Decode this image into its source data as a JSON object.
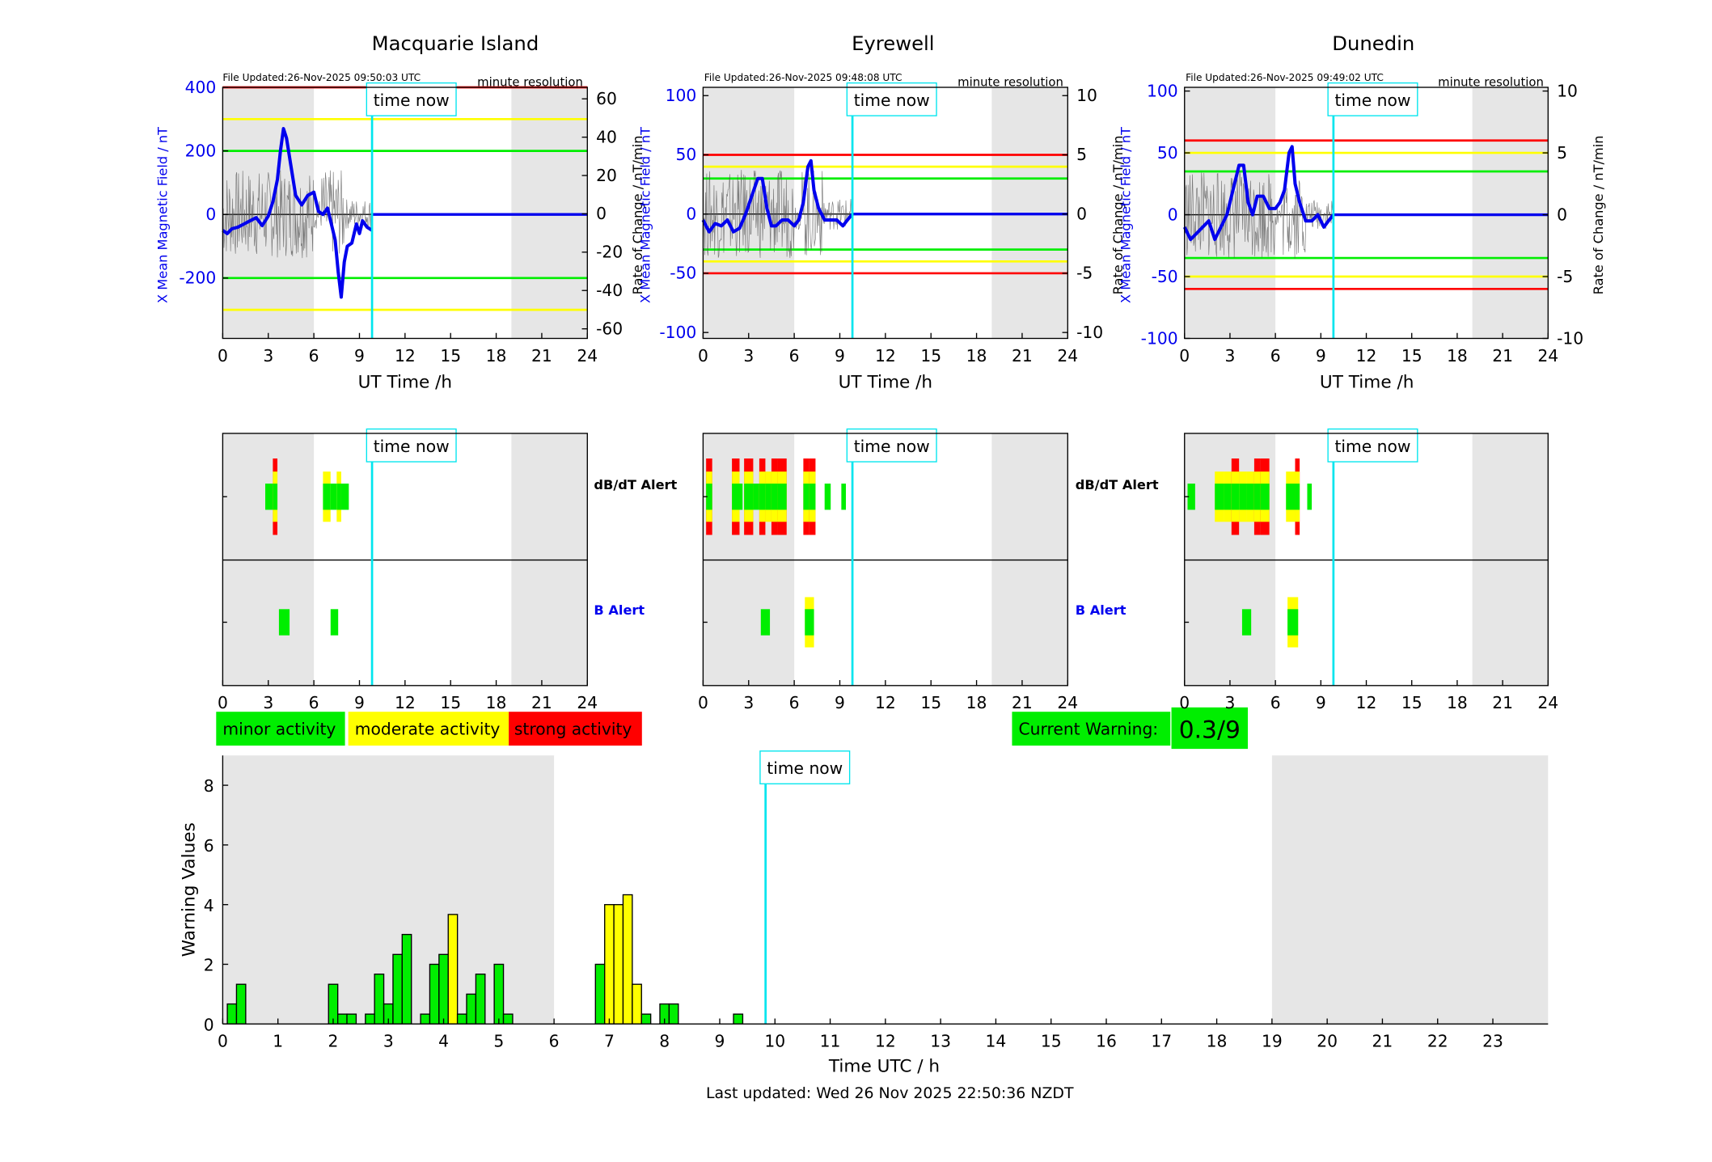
{
  "colors": {
    "blue": "#0000ee",
    "cyan": "#00e5ee",
    "red": "#ff0000",
    "yellow": "#ffff00",
    "green": "#00ee00",
    "grey_shade": "#e6e6e6",
    "black": "#000000"
  },
  "legend": {
    "minor": "minor activity",
    "moderate": "moderate activity",
    "strong": "strong activity"
  },
  "current_warning": {
    "label": "Current Warning:",
    "value": "0.3/9"
  },
  "last_updated": "Last updated: Wed 26 Nov 2025 22:50:36 NZDT",
  "time_now_label": "time now",
  "alert_labels": {
    "dbdt": "dB/dT Alert",
    "b": "B Alert"
  },
  "chart_data": [
    {
      "type": "line",
      "station": "Macquarie Island",
      "title": "Macquarie Island",
      "file_updated": "File Updated:26-Nov-2025 09:50:03 UTC",
      "resolution": "minute resolution",
      "xlabel": "UT Time /h",
      "ylabel_left": "X Mean Magnetic Field / nT",
      "ylabel_right": "Rate of Change / nT/min",
      "xlim": [
        0,
        24
      ],
      "ylim_left": [
        -390,
        400
      ],
      "ylim_right": [
        -65,
        66
      ],
      "xticks": [
        0,
        3,
        6,
        9,
        12,
        15,
        18,
        21,
        24
      ],
      "yticks_left": [
        -200,
        0,
        200,
        400
      ],
      "yticks_right": [
        -60,
        -40,
        -20,
        0,
        20,
        40,
        60
      ],
      "threshold_lines": [
        {
          "color": "red",
          "value": 400
        },
        {
          "color": "yellow",
          "value": 300
        },
        {
          "color": "green",
          "value": 200
        },
        {
          "color": "green",
          "value": -200
        },
        {
          "color": "yellow",
          "value": -300
        }
      ],
      "night_shading": [
        [
          0,
          6
        ],
        [
          19,
          24
        ]
      ],
      "time_now": 9.83,
      "series": [
        {
          "name": "X Mean Magnetic Field",
          "color": "blue",
          "x": [
            0,
            0.3,
            0.6,
            1,
            1.4,
            1.8,
            2.2,
            2.6,
            3.0,
            3.3,
            3.6,
            3.8,
            4.0,
            4.2,
            4.5,
            4.8,
            5.2,
            5.6,
            6.0,
            6.3,
            6.6,
            6.9,
            7.2,
            7.4,
            7.6,
            7.8,
            8.0,
            8.2,
            8.5,
            8.8,
            9.0,
            9.2,
            9.5,
            9.83
          ],
          "y": [
            -50,
            -60,
            -45,
            -40,
            -30,
            -20,
            -10,
            -35,
            -5,
            40,
            110,
            200,
            270,
            240,
            150,
            60,
            30,
            60,
            70,
            10,
            0,
            20,
            -40,
            -80,
            -180,
            -260,
            -150,
            -100,
            -90,
            -30,
            -60,
            -20,
            -40,
            -50
          ]
        },
        {
          "name": "Rate of Change (noisy)",
          "color": "black",
          "x": [
            0,
            9.83
          ],
          "y": [
            0,
            0
          ]
        },
        {
          "name": "flat tail",
          "color": "blue",
          "x": [
            9.83,
            24
          ],
          "y": [
            0,
            0
          ]
        }
      ]
    },
    {
      "type": "line",
      "station": "Eyrewell",
      "title": "Eyrewell",
      "file_updated": "File Updated:26-Nov-2025 09:48:08 UTC",
      "resolution": "minute resolution",
      "xlabel": "UT Time /h",
      "ylabel_left": "X Mean Magnetic Field / nT",
      "ylabel_right": "Rate of Change / nT/min",
      "xlim": [
        0,
        24
      ],
      "ylim_left": [
        -105,
        107
      ],
      "ylim_right": [
        -10.5,
        10.7
      ],
      "xticks": [
        0,
        3,
        6,
        9,
        12,
        15,
        18,
        21,
        24
      ],
      "yticks_left": [
        -100,
        -50,
        0,
        50,
        100
      ],
      "yticks_right": [
        -10,
        -5,
        0,
        5,
        10
      ],
      "threshold_lines": [
        {
          "color": "red",
          "value": 50
        },
        {
          "color": "yellow",
          "value": 40
        },
        {
          "color": "green",
          "value": 30
        },
        {
          "color": "green",
          "value": -30
        },
        {
          "color": "yellow",
          "value": -40
        },
        {
          "color": "red",
          "value": -50
        }
      ],
      "night_shading": [
        [
          0,
          6
        ],
        [
          19,
          24
        ]
      ],
      "time_now": 9.83,
      "series": [
        {
          "name": "X Mean Magnetic Field",
          "color": "blue",
          "x": [
            0,
            0.4,
            0.8,
            1.2,
            1.6,
            2.0,
            2.4,
            2.8,
            3.2,
            3.6,
            3.9,
            4.2,
            4.5,
            4.8,
            5.2,
            5.6,
            6.0,
            6.3,
            6.6,
            6.9,
            7.1,
            7.3,
            7.6,
            8.0,
            8.4,
            8.8,
            9.2,
            9.5,
            9.83
          ],
          "y": [
            -5,
            -15,
            -8,
            -10,
            -5,
            -15,
            -12,
            0,
            15,
            30,
            30,
            5,
            -10,
            -10,
            -5,
            -5,
            -10,
            -5,
            10,
            40,
            45,
            20,
            5,
            -5,
            -5,
            -5,
            -10,
            -5,
            0
          ]
        },
        {
          "name": "flat tail",
          "color": "blue",
          "x": [
            9.83,
            24
          ],
          "y": [
            0,
            0
          ]
        }
      ]
    },
    {
      "type": "line",
      "station": "Dunedin",
      "title": "Dunedin",
      "file_updated": "File Updated:26-Nov-2025 09:49:02 UTC",
      "resolution": "minute resolution",
      "xlabel": "UT Time /h",
      "ylabel_left": "X Mean Magnetic Field / nT",
      "ylabel_right": "Rate of Change / nT/min",
      "xlim": [
        0,
        24
      ],
      "ylim_left": [
        -100,
        103
      ],
      "ylim_right": [
        -10,
        10.3
      ],
      "xticks": [
        0,
        3,
        6,
        9,
        12,
        15,
        18,
        21,
        24
      ],
      "yticks_left": [
        -100,
        -50,
        0,
        50,
        100
      ],
      "yticks_right": [
        -10,
        -5,
        0,
        5,
        10
      ],
      "threshold_lines": [
        {
          "color": "red",
          "value": 60
        },
        {
          "color": "yellow",
          "value": 50
        },
        {
          "color": "green",
          "value": 35
        },
        {
          "color": "green",
          "value": -35
        },
        {
          "color": "yellow",
          "value": -50
        },
        {
          "color": "red",
          "value": -60
        }
      ],
      "night_shading": [
        [
          0,
          6
        ],
        [
          19,
          24
        ]
      ],
      "time_now": 9.83,
      "series": [
        {
          "name": "X Mean Magnetic Field",
          "color": "blue",
          "x": [
            0,
            0.4,
            0.8,
            1.2,
            1.6,
            2.0,
            2.4,
            2.8,
            3.2,
            3.6,
            3.9,
            4.2,
            4.5,
            4.8,
            5.2,
            5.6,
            6.0,
            6.3,
            6.6,
            6.9,
            7.1,
            7.3,
            7.6,
            8.0,
            8.4,
            8.8,
            9.2,
            9.5,
            9.83
          ],
          "y": [
            -10,
            -20,
            -15,
            -10,
            -5,
            -20,
            -10,
            0,
            20,
            40,
            40,
            10,
            0,
            15,
            15,
            5,
            5,
            10,
            20,
            50,
            55,
            25,
            10,
            -5,
            -5,
            0,
            -10,
            -5,
            0
          ]
        },
        {
          "name": "flat tail",
          "color": "blue",
          "x": [
            9.83,
            24
          ],
          "y": [
            0,
            0
          ]
        }
      ]
    },
    {
      "type": "bar",
      "panel": "alerts",
      "station": "Macquarie Island",
      "xlim": [
        0,
        24
      ],
      "xticks": [
        0,
        3,
        6,
        9,
        12,
        15,
        18,
        21,
        24
      ],
      "dbdt_alerts": [
        {
          "x0": 2.8,
          "x1": 3.3,
          "level": "minor"
        },
        {
          "x0": 3.3,
          "x1": 3.6,
          "level": "strong"
        },
        {
          "x0": 6.6,
          "x1": 7.1,
          "level": "moderate"
        },
        {
          "x0": 7.1,
          "x1": 7.5,
          "level": "minor"
        },
        {
          "x0": 7.5,
          "x1": 7.8,
          "level": "moderate"
        },
        {
          "x0": 7.8,
          "x1": 8.3,
          "level": "minor"
        }
      ],
      "b_alerts": [
        {
          "x0": 3.7,
          "x1": 4.4,
          "level": "minor"
        },
        {
          "x0": 7.1,
          "x1": 7.6,
          "level": "minor"
        }
      ],
      "night_shading": [
        [
          0,
          6
        ],
        [
          19,
          24
        ]
      ],
      "time_now": 9.83
    },
    {
      "type": "bar",
      "panel": "alerts",
      "station": "Eyrewell",
      "xlim": [
        0,
        24
      ],
      "xticks": [
        0,
        3,
        6,
        9,
        12,
        15,
        18,
        21,
        24
      ],
      "dbdt_alerts": [
        {
          "x0": 0.2,
          "x1": 0.6,
          "level": "strong"
        },
        {
          "x0": 1.9,
          "x1": 2.4,
          "level": "strong"
        },
        {
          "x0": 2.4,
          "x1": 2.6,
          "level": "minor"
        },
        {
          "x0": 2.7,
          "x1": 3.3,
          "level": "strong"
        },
        {
          "x0": 3.3,
          "x1": 3.7,
          "level": "minor"
        },
        {
          "x0": 3.7,
          "x1": 4.1,
          "level": "strong"
        },
        {
          "x0": 4.1,
          "x1": 4.5,
          "level": "moderate"
        },
        {
          "x0": 4.5,
          "x1": 4.9,
          "level": "strong"
        },
        {
          "x0": 4.9,
          "x1": 5.5,
          "level": "strong"
        },
        {
          "x0": 6.6,
          "x1": 7.0,
          "level": "strong"
        },
        {
          "x0": 7.0,
          "x1": 7.4,
          "level": "strong"
        },
        {
          "x0": 8.0,
          "x1": 8.4,
          "level": "minor"
        },
        {
          "x0": 9.1,
          "x1": 9.4,
          "level": "minor"
        }
      ],
      "b_alerts": [
        {
          "x0": 3.8,
          "x1": 4.4,
          "level": "minor"
        },
        {
          "x0": 6.7,
          "x1": 7.3,
          "level": "moderate"
        }
      ],
      "night_shading": [
        [
          0,
          6
        ],
        [
          19,
          24
        ]
      ],
      "time_now": 9.83
    },
    {
      "type": "bar",
      "panel": "alerts",
      "station": "Dunedin",
      "xlim": [
        0,
        24
      ],
      "xticks": [
        0,
        3,
        6,
        9,
        12,
        15,
        18,
        21,
        24
      ],
      "dbdt_alerts": [
        {
          "x0": 0.2,
          "x1": 0.7,
          "level": "minor"
        },
        {
          "x0": 2.0,
          "x1": 2.6,
          "level": "moderate"
        },
        {
          "x0": 2.6,
          "x1": 3.1,
          "level": "moderate"
        },
        {
          "x0": 3.1,
          "x1": 3.6,
          "level": "strong"
        },
        {
          "x0": 3.6,
          "x1": 4.1,
          "level": "moderate"
        },
        {
          "x0": 4.1,
          "x1": 4.6,
          "level": "moderate"
        },
        {
          "x0": 4.6,
          "x1": 5.0,
          "level": "strong"
        },
        {
          "x0": 5.0,
          "x1": 5.6,
          "level": "strong"
        },
        {
          "x0": 6.7,
          "x1": 7.3,
          "level": "moderate"
        },
        {
          "x0": 7.3,
          "x1": 7.6,
          "level": "strong"
        },
        {
          "x0": 8.1,
          "x1": 8.4,
          "level": "minor"
        }
      ],
      "b_alerts": [
        {
          "x0": 3.8,
          "x1": 4.4,
          "level": "minor"
        },
        {
          "x0": 6.8,
          "x1": 7.5,
          "level": "moderate"
        }
      ],
      "night_shading": [
        [
          0,
          6
        ],
        [
          19,
          24
        ]
      ],
      "time_now": 9.83
    },
    {
      "type": "bar",
      "panel": "warning",
      "xlabel": "Time UTC / h",
      "ylabel": "Warning Values",
      "xlim": [
        0,
        24
      ],
      "ylim": [
        0,
        9
      ],
      "xticks": [
        0,
        1,
        2,
        3,
        4,
        5,
        6,
        7,
        8,
        9,
        10,
        11,
        12,
        13,
        14,
        15,
        16,
        17,
        18,
        19,
        20,
        21,
        22,
        23
      ],
      "yticks": [
        0,
        2,
        4,
        6,
        8
      ],
      "night_shading": [
        [
          0,
          6
        ],
        [
          19,
          24
        ]
      ],
      "time_now": 9.83,
      "bar_width": 0.167,
      "x": [
        0.167,
        0.333,
        2.0,
        2.167,
        2.333,
        2.667,
        2.833,
        3.0,
        3.167,
        3.333,
        3.667,
        3.833,
        4.0,
        4.167,
        4.333,
        4.5,
        4.667,
        5.0,
        5.167,
        6.833,
        7.0,
        7.167,
        7.333,
        7.5,
        7.667,
        8.0,
        8.167,
        9.333
      ],
      "values": [
        0.67,
        1.33,
        1.33,
        0.33,
        0.33,
        0.33,
        1.67,
        0.67,
        2.33,
        3.0,
        0.33,
        2.0,
        2.33,
        3.67,
        0.33,
        1.0,
        1.67,
        2.0,
        0.33,
        2.0,
        4.0,
        4.0,
        4.33,
        1.33,
        0.33,
        0.67,
        0.67,
        0.33
      ],
      "levels": [
        "minor",
        "minor",
        "minor",
        "minor",
        "minor",
        "minor",
        "minor",
        "minor",
        "minor",
        "minor",
        "minor",
        "minor",
        "minor",
        "moderate",
        "minor",
        "minor",
        "minor",
        "minor",
        "minor",
        "minor",
        "moderate",
        "moderate",
        "moderate",
        "moderate",
        "minor",
        "minor",
        "minor",
        "minor"
      ]
    }
  ]
}
